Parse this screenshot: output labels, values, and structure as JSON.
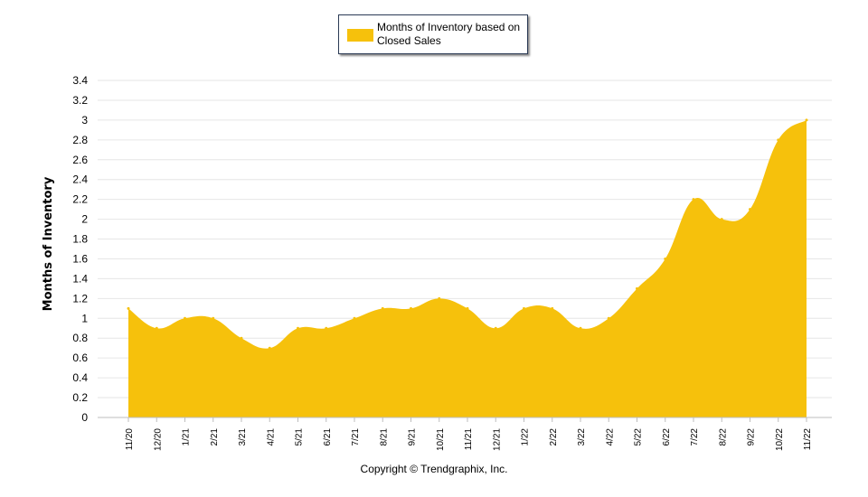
{
  "legend": {
    "label": "Months of Inventory based on Closed Sales"
  },
  "footer": {
    "copyright": "Copyright © Trendgraphix, Inc."
  },
  "colors": {
    "series_fill": "#f6c10c",
    "grid": "#e6e6e6"
  },
  "chart_data": {
    "type": "area",
    "title": "",
    "xlabel": "",
    "ylabel": "Months of Inventory",
    "ylim": [
      0,
      3.4
    ],
    "yticks": [
      "0",
      "0.2",
      "0.4",
      "0.6",
      "0.8",
      "1",
      "1.2",
      "1.4",
      "1.6",
      "1.8",
      "2",
      "2.2",
      "2.4",
      "2.6",
      "2.8",
      "3",
      "3.2",
      "3.4"
    ],
    "categories": [
      "11/20",
      "12/20",
      "1/21",
      "2/21",
      "3/21",
      "4/21",
      "5/21",
      "6/21",
      "7/21",
      "8/21",
      "9/21",
      "10/21",
      "11/21",
      "12/21",
      "1/22",
      "2/22",
      "3/22",
      "4/22",
      "5/22",
      "6/22",
      "7/22",
      "8/22",
      "9/22",
      "10/22",
      "11/22"
    ],
    "series": [
      {
        "name": "Months of Inventory based on Closed Sales",
        "values": [
          1.1,
          0.9,
          1.0,
          1.0,
          0.8,
          0.7,
          0.9,
          0.9,
          1.0,
          1.1,
          1.1,
          1.2,
          1.1,
          0.9,
          1.1,
          1.1,
          0.9,
          1.0,
          1.3,
          1.6,
          2.2,
          2.0,
          2.1,
          2.8,
          3.0
        ]
      }
    ],
    "grid": true,
    "legend_position": "top-center"
  }
}
